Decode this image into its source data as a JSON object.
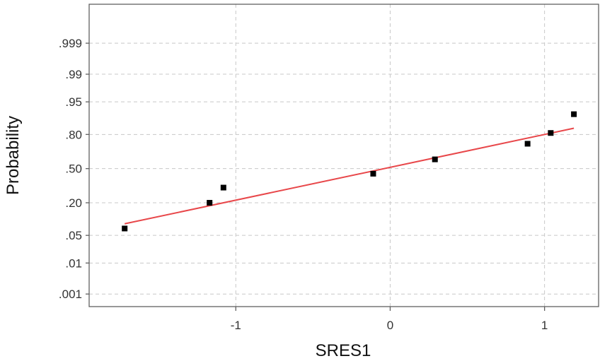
{
  "chart_data": {
    "type": "scatter",
    "subtype": "normal-probability-plot",
    "xlabel": "SRES1",
    "ylabel": "Probability",
    "xlim": [
      -1.95,
      1.35
    ],
    "ylim": [
      -3.4,
      4.05
    ],
    "y_scale": "normal-quantile",
    "x_ticks": [
      {
        "value": -1,
        "label": "-1"
      },
      {
        "value": 0,
        "label": "0"
      },
      {
        "value": 1,
        "label": "1"
      }
    ],
    "y_ticks": [
      {
        "value": 0.001,
        "label": ".001"
      },
      {
        "value": 0.01,
        "label": ".01"
      },
      {
        "value": 0.05,
        "label": ".05"
      },
      {
        "value": 0.2,
        "label": ".20"
      },
      {
        "value": 0.5,
        "label": ".50"
      },
      {
        "value": 0.8,
        "label": ".80"
      },
      {
        "value": 0.95,
        "label": ".95"
      },
      {
        "value": 0.99,
        "label": ".99"
      },
      {
        "value": 0.999,
        "label": ".999"
      }
    ],
    "grid": true,
    "points": [
      {
        "x": -1.72,
        "y": 0.07
      },
      {
        "x": -1.17,
        "y": 0.2
      },
      {
        "x": -1.08,
        "y": 0.32
      },
      {
        "x": -0.11,
        "y": 0.45
      },
      {
        "x": 0.29,
        "y": 0.59
      },
      {
        "x": 0.89,
        "y": 0.73
      },
      {
        "x": 1.04,
        "y": 0.81
      },
      {
        "x": 1.19,
        "y": 0.91
      }
    ],
    "fit_line": {
      "x": [
        -1.72,
        1.19
      ],
      "y": [
        0.087,
        0.84
      ]
    },
    "colors": {
      "points": "#000000",
      "fit_line": "#e8474a",
      "grid": "#c8c8c8",
      "frame": "#606060"
    }
  }
}
